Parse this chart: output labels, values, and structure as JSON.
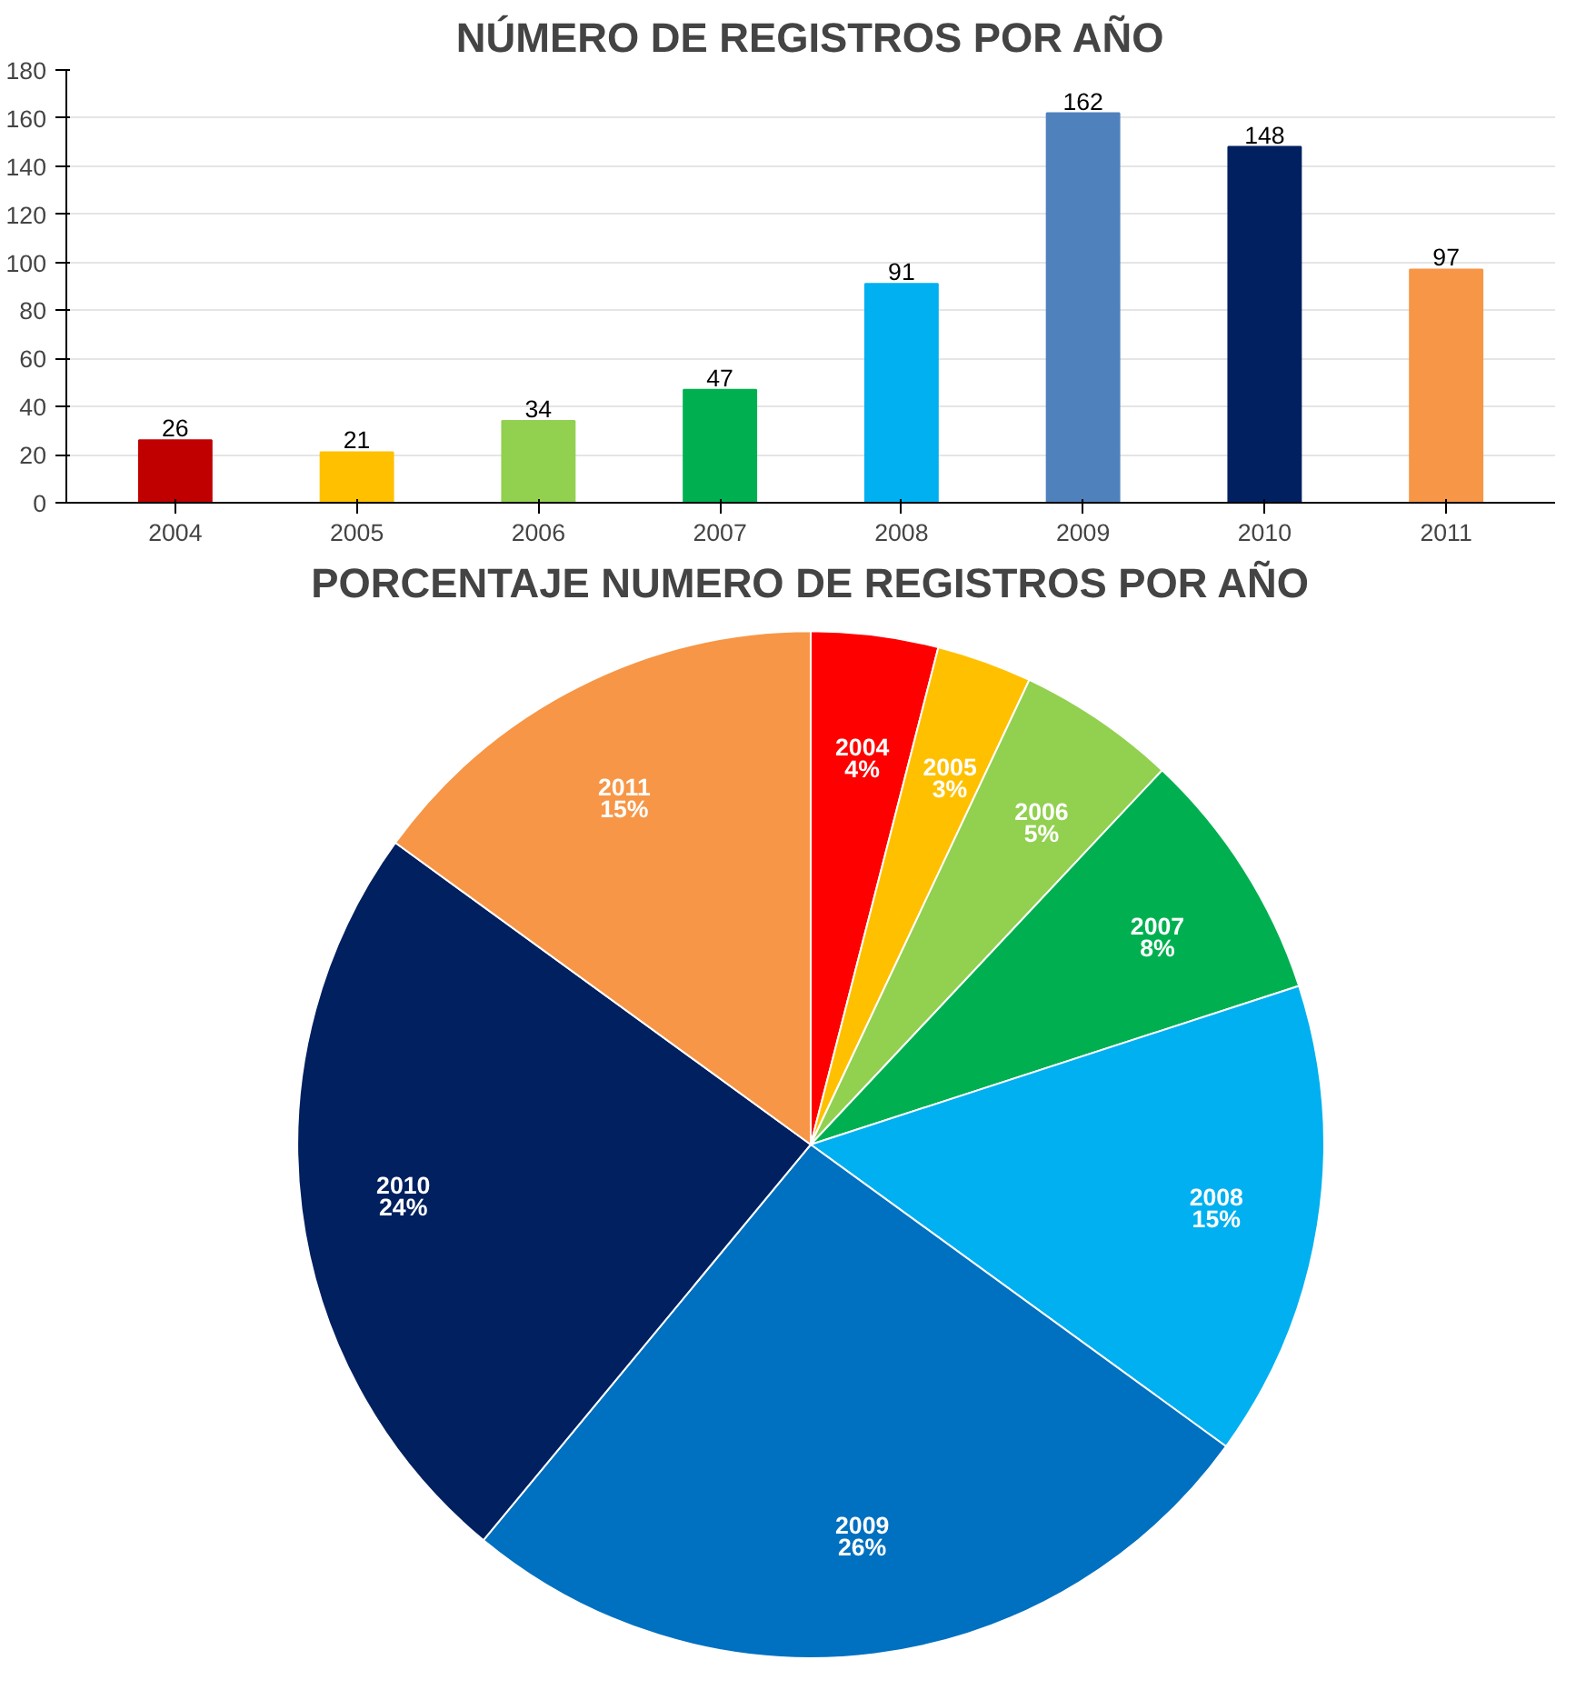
{
  "chart_data": [
    {
      "type": "bar",
      "title": "NÚMERO DE REGISTROS POR AÑO",
      "categories": [
        "2004",
        "2005",
        "2006",
        "2007",
        "2008",
        "2009",
        "2010",
        "2011"
      ],
      "values": [
        26,
        21,
        34,
        47,
        91,
        162,
        148,
        97
      ],
      "colors": [
        "#c00000",
        "#ffc000",
        "#92d050",
        "#00b050",
        "#00b0f0",
        "#4f81bd",
        "#002060",
        "#f79646"
      ],
      "ylim": [
        0,
        180
      ],
      "yticks": [
        0,
        20,
        40,
        60,
        80,
        100,
        120,
        140,
        160,
        180
      ],
      "grid": "y",
      "data_labels": true
    },
    {
      "type": "pie",
      "title": "PORCENTAJE NUMERO DE REGISTROS POR AÑO",
      "categories": [
        "2004",
        "2005",
        "2006",
        "2007",
        "2008",
        "2009",
        "2010",
        "2011"
      ],
      "values": [
        4,
        3,
        5,
        8,
        15,
        26,
        24,
        15
      ],
      "value_labels": [
        "4%",
        "3%",
        "5%",
        "8%",
        "15%",
        "26%",
        "24%",
        "15%"
      ],
      "colors": [
        "#ff0000",
        "#ffc000",
        "#92d050",
        "#00b050",
        "#00b0f0",
        "#0070c0",
        "#002060",
        "#f79646"
      ]
    }
  ]
}
